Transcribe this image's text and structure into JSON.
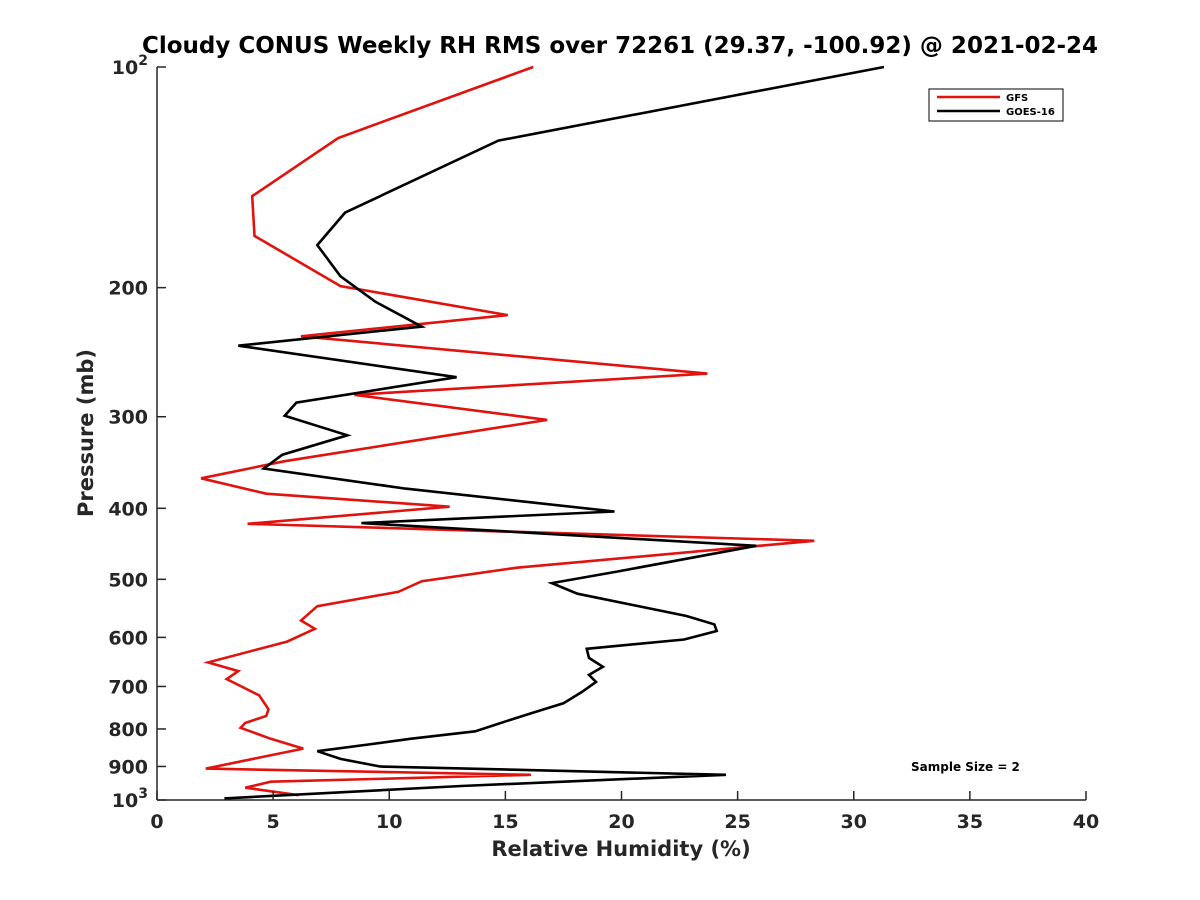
{
  "chart_data": {
    "type": "line",
    "title": "Cloudy CONUS Weekly RH RMS over 72261 (29.37, -100.92) @ 2021-02-24",
    "xlabel": "Relative Humidity (%)",
    "ylabel": "Pressure (mb)",
    "xlim": [
      0,
      40
    ],
    "ylim": [
      100,
      1000
    ],
    "y_scale": "log",
    "y_reversed": true,
    "grid": false,
    "legend_position": "top-right",
    "x_ticks": [
      "0",
      "5",
      "10",
      "15",
      "20",
      "25",
      "30",
      "35",
      "40"
    ],
    "y_ticks": [
      {
        "value": 100,
        "label": "10",
        "sup": "2"
      },
      {
        "value": 200,
        "label": "200"
      },
      {
        "value": 300,
        "label": "300"
      },
      {
        "value": 400,
        "label": "400"
      },
      {
        "value": 500,
        "label": "500"
      },
      {
        "value": 600,
        "label": "600"
      },
      {
        "value": 700,
        "label": "700"
      },
      {
        "value": 800,
        "label": "800"
      },
      {
        "value": 900,
        "label": "900"
      },
      {
        "value": 1000,
        "label": "10",
        "sup": "3"
      }
    ],
    "annotation": "Sample Size = 2",
    "series": [
      {
        "name": "GFS",
        "color": "#e0130f",
        "points": [
          [
            16.2,
            100
          ],
          [
            7.8,
            125
          ],
          [
            4.1,
            150
          ],
          [
            4.2,
            170
          ],
          [
            7.9,
            199
          ],
          [
            15.1,
            218
          ],
          [
            6.2,
            233
          ],
          [
            23.7,
            262
          ],
          [
            8.5,
            280
          ],
          [
            16.8,
            303
          ],
          [
            12.0,
            320
          ],
          [
            5.5,
            345
          ],
          [
            1.9,
            364
          ],
          [
            4.7,
            382
          ],
          [
            12.6,
            398
          ],
          [
            3.9,
            420
          ],
          [
            28.3,
            443
          ],
          [
            15.5,
            482
          ],
          [
            11.4,
            503
          ],
          [
            10.4,
            520
          ],
          [
            6.9,
            544
          ],
          [
            6.2,
            569
          ],
          [
            6.8,
            584
          ],
          [
            5.6,
            608
          ],
          [
            2.2,
            649
          ],
          [
            3.5,
            667
          ],
          [
            3.0,
            684
          ],
          [
            4.4,
            720
          ],
          [
            4.8,
            752
          ],
          [
            4.7,
            768
          ],
          [
            3.8,
            785
          ],
          [
            3.6,
            797
          ],
          [
            4.9,
            825
          ],
          [
            6.3,
            851
          ],
          [
            2.1,
            906
          ],
          [
            16.1,
            924
          ],
          [
            4.9,
            944
          ],
          [
            3.8,
            962
          ],
          [
            6.1,
            985
          ]
        ]
      },
      {
        "name": "GOES-16",
        "color": "#000000",
        "points": [
          [
            31.3,
            100
          ],
          [
            14.7,
            126
          ],
          [
            8.1,
            158
          ],
          [
            6.9,
            175
          ],
          [
            7.9,
            193
          ],
          [
            9.4,
            209
          ],
          [
            11.4,
            226
          ],
          [
            3.5,
            240
          ],
          [
            12.9,
            265
          ],
          [
            6.0,
            287
          ],
          [
            5.5,
            299
          ],
          [
            8.2,
            318
          ],
          [
            5.4,
            338
          ],
          [
            4.6,
            353
          ],
          [
            10.7,
            376
          ],
          [
            19.7,
            404
          ],
          [
            8.8,
            419
          ],
          [
            25.8,
            450
          ],
          [
            19.8,
            488
          ],
          [
            17.0,
            506
          ],
          [
            18.1,
            523
          ],
          [
            22.8,
            561
          ],
          [
            24.0,
            576
          ],
          [
            24.1,
            588
          ],
          [
            22.7,
            604
          ],
          [
            18.5,
            622
          ],
          [
            18.6,
            640
          ],
          [
            19.2,
            658
          ],
          [
            18.6,
            675
          ],
          [
            18.9,
            690
          ],
          [
            18.3,
            712
          ],
          [
            17.5,
            738
          ],
          [
            16.2,
            760
          ],
          [
            14.7,
            787
          ],
          [
            13.7,
            806
          ],
          [
            10.9,
            825
          ],
          [
            9.1,
            840
          ],
          [
            6.9,
            858
          ],
          [
            7.9,
            879
          ],
          [
            9.6,
            900
          ],
          [
            24.5,
            924
          ],
          [
            13.1,
            957
          ],
          [
            2.9,
            995
          ]
        ]
      }
    ]
  }
}
